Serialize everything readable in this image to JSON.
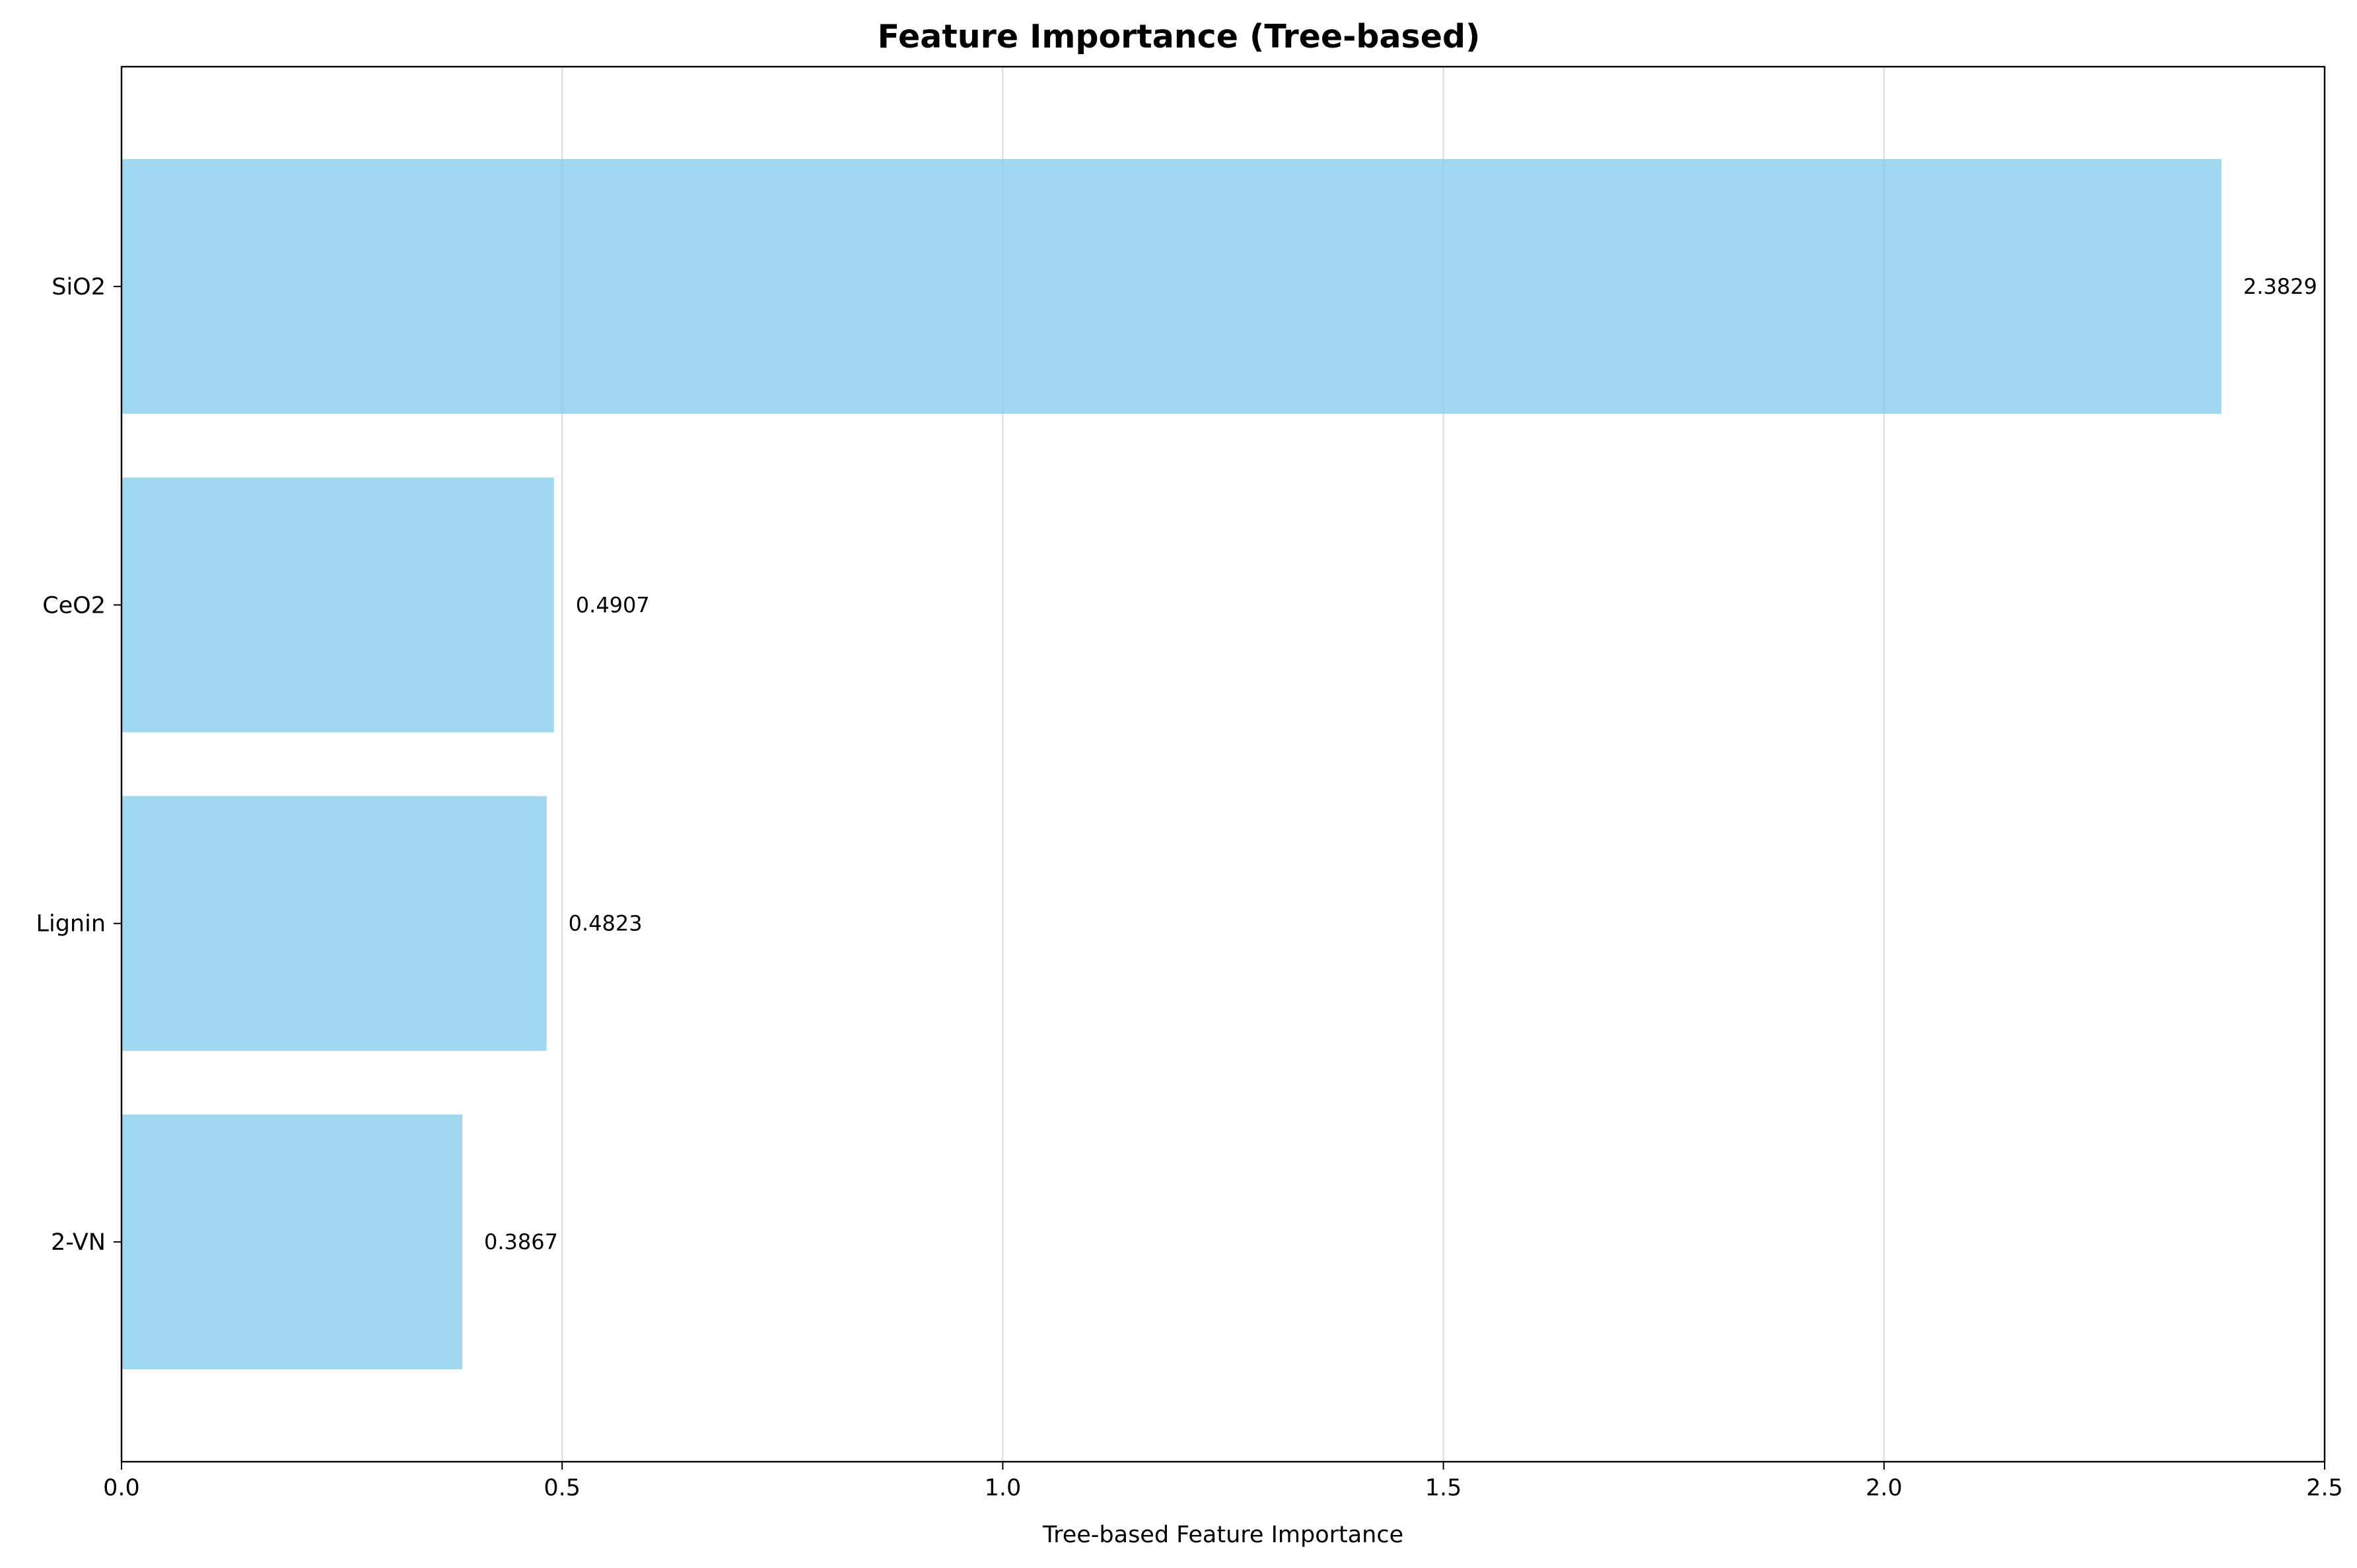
{
  "chart_data": {
    "type": "bar",
    "orientation": "horizontal",
    "title": "Feature Importance (Tree-based)",
    "xlabel": "Tree-based Feature Importance",
    "ylabel": "",
    "xlim": [
      0,
      2.5
    ],
    "xticks": [
      "0.0",
      "0.5",
      "1.0",
      "1.5",
      "2.0",
      "2.5"
    ],
    "xtick_values": [
      0,
      0.5,
      1.0,
      1.5,
      2.0,
      2.5
    ],
    "categories": [
      "SiO2",
      "CeO2",
      "Lignin",
      "2-VN"
    ],
    "values": [
      2.3829,
      0.4907,
      0.4823,
      0.3867
    ],
    "value_labels": [
      "2.3829",
      "0.4907",
      "0.4823",
      "0.3867"
    ],
    "grid": "x",
    "colors": {
      "bar": "#87ceeb",
      "grid": "#dddddd",
      "axis": "#000000"
    }
  }
}
